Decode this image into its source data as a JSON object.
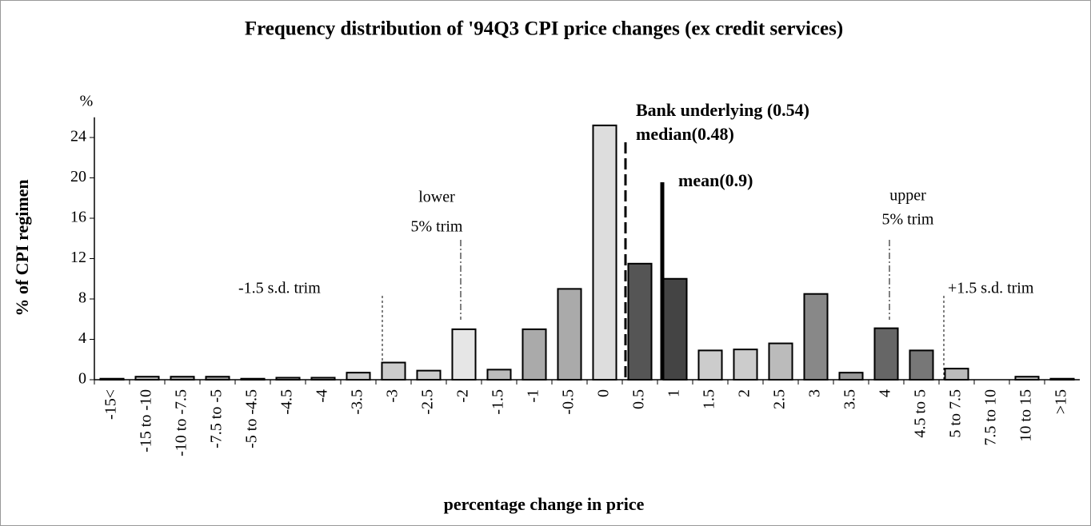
{
  "chart_data": {
    "type": "bar",
    "title": "Frequency distribution of '94Q3 CPI price changes (ex credit services)",
    "y_unit": "%",
    "y_label": "% of CPI regimen",
    "x_label": "percentage change in price",
    "categories": [
      "-15<",
      "-15 to -10",
      "-10 to -7.5",
      "-7.5 to -5",
      "-5 to -4.5",
      "-4.5",
      "-4",
      "-3.5",
      "-3",
      "-2.5",
      "-2",
      "-1.5",
      "-1",
      "-0.5",
      "0",
      "0.5",
      "1",
      "1.5",
      "2",
      "2.5",
      "3",
      "3.5",
      "4",
      "4.5 to 5",
      "5 to 7.5",
      "7.5 to 10",
      "10 to 15",
      ">15"
    ],
    "values": [
      0.1,
      0.3,
      0.3,
      0.3,
      0.1,
      0.2,
      0.2,
      0.7,
      1.7,
      0.9,
      5,
      1,
      5,
      9,
      25.2,
      11.5,
      10,
      2.9,
      3,
      3.6,
      8.5,
      0.7,
      5.1,
      2.9,
      1.1,
      0,
      0.3,
      0.1
    ],
    "colors": [
      "#bbb",
      "#bbb",
      "#aaa",
      "#999",
      "#bbb",
      "#bbb",
      "#bbb",
      "#ccc",
      "#ccc",
      "#ccc",
      "#e6e6e6",
      "#bbb",
      "#aaa",
      "#aaa",
      "#ddd",
      "#555",
      "#444",
      "#ccc",
      "#ccc",
      "#bbb",
      "#888",
      "#999",
      "#666",
      "#777",
      "#bbb",
      "#bbb",
      "#bbb",
      "#bbb"
    ],
    "ylim": [
      0,
      26
    ],
    "yticks": [
      0,
      4,
      8,
      12,
      16,
      20,
      24
    ],
    "annotations": [
      "Bank underlying (0.54)",
      "median(0.48)",
      "mean(0.9)",
      "lower",
      "5% trim",
      "upper",
      "5% trim",
      "-1.5 s.d. trim",
      "+1.5 s.d. trim"
    ]
  }
}
